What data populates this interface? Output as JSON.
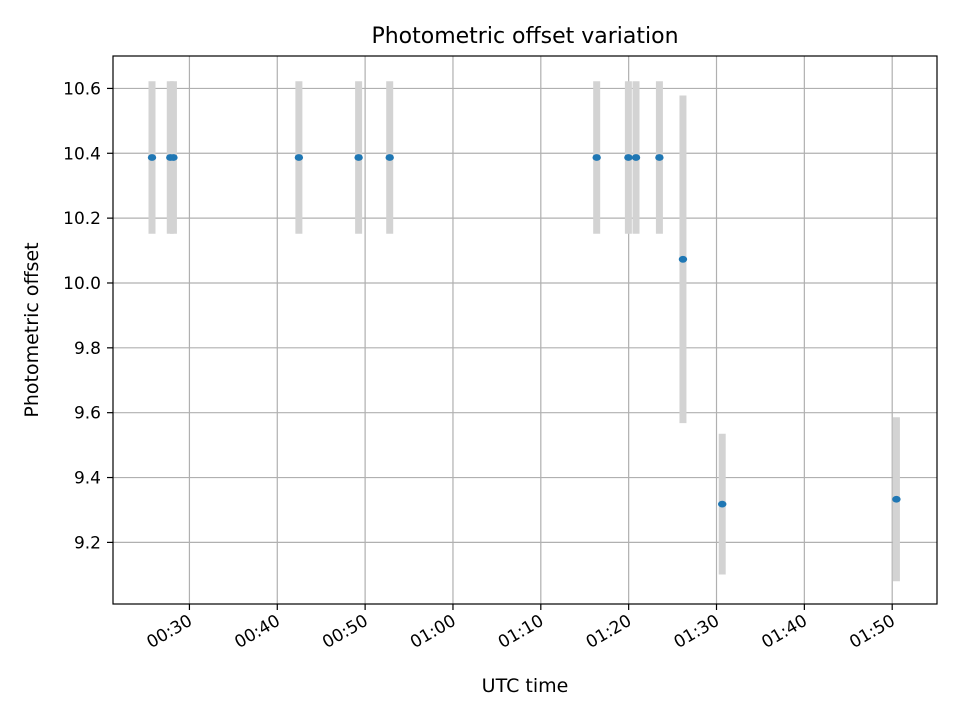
{
  "chart_data": {
    "type": "scatter",
    "title": "Photometric offset variation",
    "xlabel": "UTC time",
    "ylabel": "Photometric offset",
    "x_tick_labels": [
      "00:30",
      "00:40",
      "00:50",
      "01:00",
      "01:10",
      "01:20",
      "01:30",
      "01:40",
      "01:50"
    ],
    "y_tick_labels": [
      "9.2",
      "9.4",
      "9.6",
      "9.8",
      "10.0",
      "10.2",
      "10.4",
      "10.6"
    ],
    "x_ticks_minutes": [
      30,
      40,
      50,
      60,
      70,
      80,
      90,
      100,
      110
    ],
    "y_ticks": [
      9.2,
      9.4,
      9.6,
      9.8,
      10.0,
      10.2,
      10.4,
      10.6
    ],
    "xlim_minutes": [
      21.3,
      115.1
    ],
    "ylim": [
      9.01,
      10.7
    ],
    "grid": true,
    "points": [
      {
        "t": "00:25:44",
        "minutes": 25.74,
        "y": 10.387,
        "err": 0.235
      },
      {
        "t": "00:27:49",
        "minutes": 27.82,
        "y": 10.387,
        "err": 0.235
      },
      {
        "t": "00:28:11",
        "minutes": 28.18,
        "y": 10.387,
        "err": 0.235
      },
      {
        "t": "00:42:28",
        "minutes": 42.46,
        "y": 10.387,
        "err": 0.235
      },
      {
        "t": "00:49:15",
        "minutes": 49.26,
        "y": 10.387,
        "err": 0.235
      },
      {
        "t": "00:52:48",
        "minutes": 52.8,
        "y": 10.387,
        "err": 0.235
      },
      {
        "t": "01:16:22",
        "minutes": 76.36,
        "y": 10.387,
        "err": 0.235
      },
      {
        "t": "01:19:58",
        "minutes": 79.97,
        "y": 10.387,
        "err": 0.235
      },
      {
        "t": "01:20:50",
        "minutes": 80.84,
        "y": 10.387,
        "err": 0.235
      },
      {
        "t": "01:23:30",
        "minutes": 83.5,
        "y": 10.387,
        "err": 0.235
      },
      {
        "t": "01:26:11",
        "minutes": 86.18,
        "y": 10.073,
        "err": 0.505
      },
      {
        "t": "01:30:39",
        "minutes": 90.65,
        "y": 9.318,
        "err": 0.217
      },
      {
        "t": "01:50:29",
        "minutes": 110.48,
        "y": 9.333,
        "err": 0.253
      }
    ],
    "colors": {
      "marker": "#1f77b4",
      "errorbar": "#d3d3d3",
      "grid": "#b0b0b0",
      "axes": "#000000"
    }
  }
}
